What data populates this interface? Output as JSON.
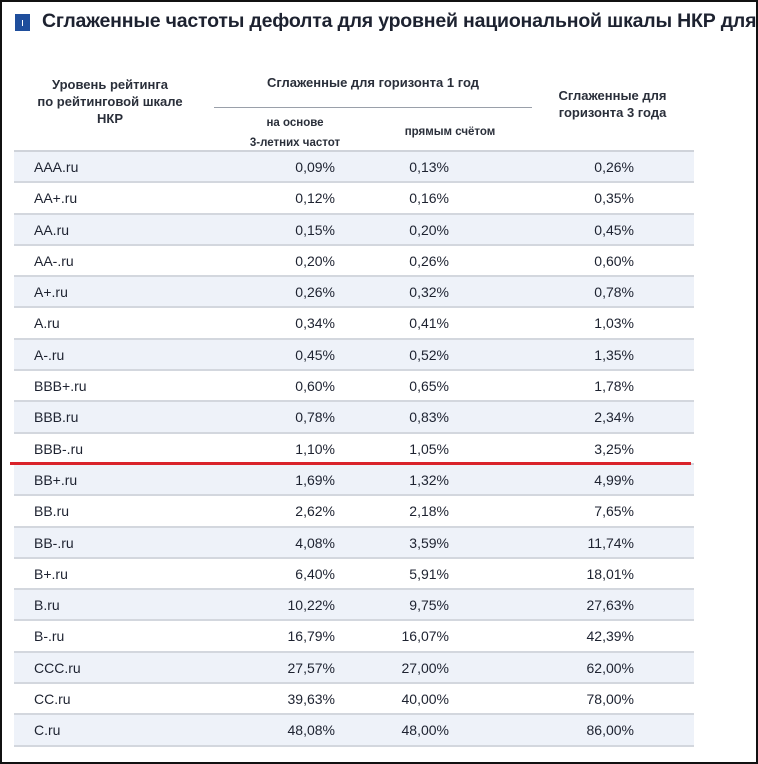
{
  "title": "Сглаженные частоты дефолта для уровней национальной шкалы НКР для РФ",
  "colors": {
    "accent": "#1f4e9c",
    "highlight_line": "#d9232b",
    "row_alt": "#eef2f9"
  },
  "header": {
    "rating_col": [
      "Уровень рейтинга",
      "по рейтинговой шкале",
      "НКР"
    ],
    "group_1y": "Сглаженные для горизонта 1 год",
    "sub_3y_freq": [
      "на основе",
      "3-летних частот"
    ],
    "sub_direct": "прямым счётом",
    "col_3y": [
      "Сглаженные для",
      "горизонта 3 года"
    ]
  },
  "rows": [
    [
      "AAA.ru",
      "0,09%",
      "0,13%",
      "0,26%"
    ],
    [
      "AA+.ru",
      "0,12%",
      "0,16%",
      "0,35%"
    ],
    [
      "AA.ru",
      "0,15%",
      "0,20%",
      "0,45%"
    ],
    [
      "AA-.ru",
      "0,20%",
      "0,26%",
      "0,60%"
    ],
    [
      "A+.ru",
      "0,26%",
      "0,32%",
      "0,78%"
    ],
    [
      "A.ru",
      "0,34%",
      "0,41%",
      "1,03%"
    ],
    [
      "A-.ru",
      "0,45%",
      "0,52%",
      "1,35%"
    ],
    [
      "BBB+.ru",
      "0,60%",
      "0,65%",
      "1,78%"
    ],
    [
      "BBB.ru",
      "0,78%",
      "0,83%",
      "2,34%"
    ],
    [
      "BBB-.ru",
      "1,10%",
      "1,05%",
      "3,25%"
    ],
    [
      "BB+.ru",
      "1,69%",
      "1,32%",
      "4,99%"
    ],
    [
      "BB.ru",
      "2,62%",
      "2,18%",
      "7,65%"
    ],
    [
      "BB-.ru",
      "4,08%",
      "3,59%",
      "11,74%"
    ],
    [
      "B+.ru",
      "6,40%",
      "5,91%",
      "18,01%"
    ],
    [
      "B.ru",
      "10,22%",
      "9,75%",
      "27,63%"
    ],
    [
      "B-.ru",
      "16,79%",
      "16,07%",
      "42,39%"
    ],
    [
      "CCC.ru",
      "27,57%",
      "27,00%",
      "62,00%"
    ],
    [
      "CC.ru",
      "39,63%",
      "40,00%",
      "78,00%"
    ],
    [
      "C.ru",
      "48,08%",
      "48,00%",
      "86,00%"
    ]
  ]
}
